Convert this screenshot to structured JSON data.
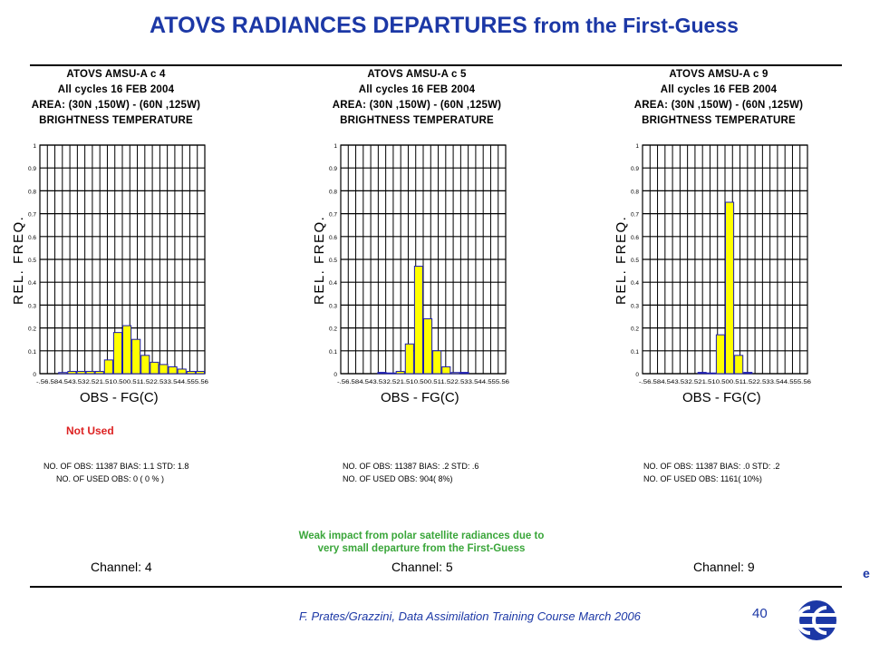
{
  "slide": {
    "title_main": "ATOVS RADIANCES DEPARTURES",
    "title_rest": "from the First-Guess",
    "not_used": "Not Used",
    "note_line1": "Weak impact from polar satellite radiances due to",
    "note_line2": "very small departure from the First-Guess",
    "footer": "F. Prates/Grazzini,  Data Assimilation Training Course March 2006",
    "page_number": "40",
    "edge_char": "e"
  },
  "colors": {
    "title": "#1c38a6",
    "bar_fill": "#ffff00",
    "bar_edge": "#1b1bb0",
    "note": "#3aa63a",
    "not_used": "#d22222"
  },
  "chart_data": [
    {
      "type": "bar",
      "title_lines": [
        "ATOVS AMSU-A c 4",
        "All cycles 16 FEB 2004",
        "AREA: (30N ,150W) - (60N ,125W)",
        "BRIGHTNESS TEMPERATURE"
      ],
      "xlabel": "OBS - FG(C)",
      "ylabel": "REL. FREQ.",
      "ylim": [
        0,
        1
      ],
      "yticks": [
        "0",
        "0.1",
        "0.2",
        "0.3",
        "0.4",
        "0.5",
        "0.6",
        "0.7",
        "0.8",
        "0.9",
        "1"
      ],
      "xtick_text": "-.56.584.543.532.521.510.500.511.522.533.544.555.56",
      "values": [
        0,
        0,
        0.005,
        0.01,
        0.01,
        0.01,
        0.01,
        0.06,
        0.18,
        0.21,
        0.15,
        0.08,
        0.05,
        0.04,
        0.03,
        0.02,
        0.01,
        0.01
      ],
      "stats_line1": "NO. OF OBS: 11387 BIAS: 1.1 STD: 1.8",
      "stats_line2": "NO. OF USED OBS:     0 ( 0 % )",
      "channel": "Channel: 4"
    },
    {
      "type": "bar",
      "title_lines": [
        "ATOVS AMSU-A c 5",
        "All cycles 16 FEB 2004",
        "AREA: (30N ,150W) - (60N ,125W)",
        "BRIGHTNESS TEMPERATURE"
      ],
      "xlabel": "OBS - FG(C)",
      "ylabel": "REL. FREQ.",
      "ylim": [
        0,
        1
      ],
      "yticks": [
        "0",
        "0.1",
        "0.2",
        "0.3",
        "0.4",
        "0.5",
        "0.6",
        "0.7",
        "0.8",
        "0.9",
        "1"
      ],
      "xtick_text": "-.56.584.543.532.521.510.500.511.522.533.544.555.56",
      "values": [
        0,
        0,
        0,
        0,
        0.002,
        0.003,
        0.01,
        0.13,
        0.47,
        0.24,
        0.1,
        0.03,
        0.005,
        0.002,
        0,
        0,
        0,
        0
      ],
      "stats_line1": "NO. OF OBS: 11387 BIAS: .2 STD: .6",
      "stats_line2": "NO. OF USED OBS:   904( 8%)",
      "channel": "Channel: 5"
    },
    {
      "type": "bar",
      "title_lines": [
        "ATOVS AMSU-A c 9",
        "All cycles 16 FEB 2004",
        "AREA: (30N ,150W) - (60N ,125W)",
        "BRIGHTNESS TEMPERATURE"
      ],
      "xlabel": "OBS - FG(C)",
      "ylabel": "REL. FREQ.",
      "ylim": [
        0,
        1
      ],
      "yticks": [
        "0",
        "0.1",
        "0.2",
        "0.3",
        "0.4",
        "0.5",
        "0.6",
        "0.7",
        "0.8",
        "0.9",
        "1"
      ],
      "xtick_text": "-.56.584.543.532.521.510.500.511.522.533.544.555.56",
      "values": [
        0,
        0,
        0,
        0,
        0,
        0,
        0.002,
        0.003,
        0.17,
        0.75,
        0.08,
        0.002,
        0,
        0,
        0,
        0,
        0,
        0
      ],
      "stats_line1": "NO. OF OBS: 11387 BIAS: .0 STD: .2",
      "stats_line2": "NO. OF USED OBS:  1161( 10%)",
      "channel": "Channel: 9"
    }
  ]
}
